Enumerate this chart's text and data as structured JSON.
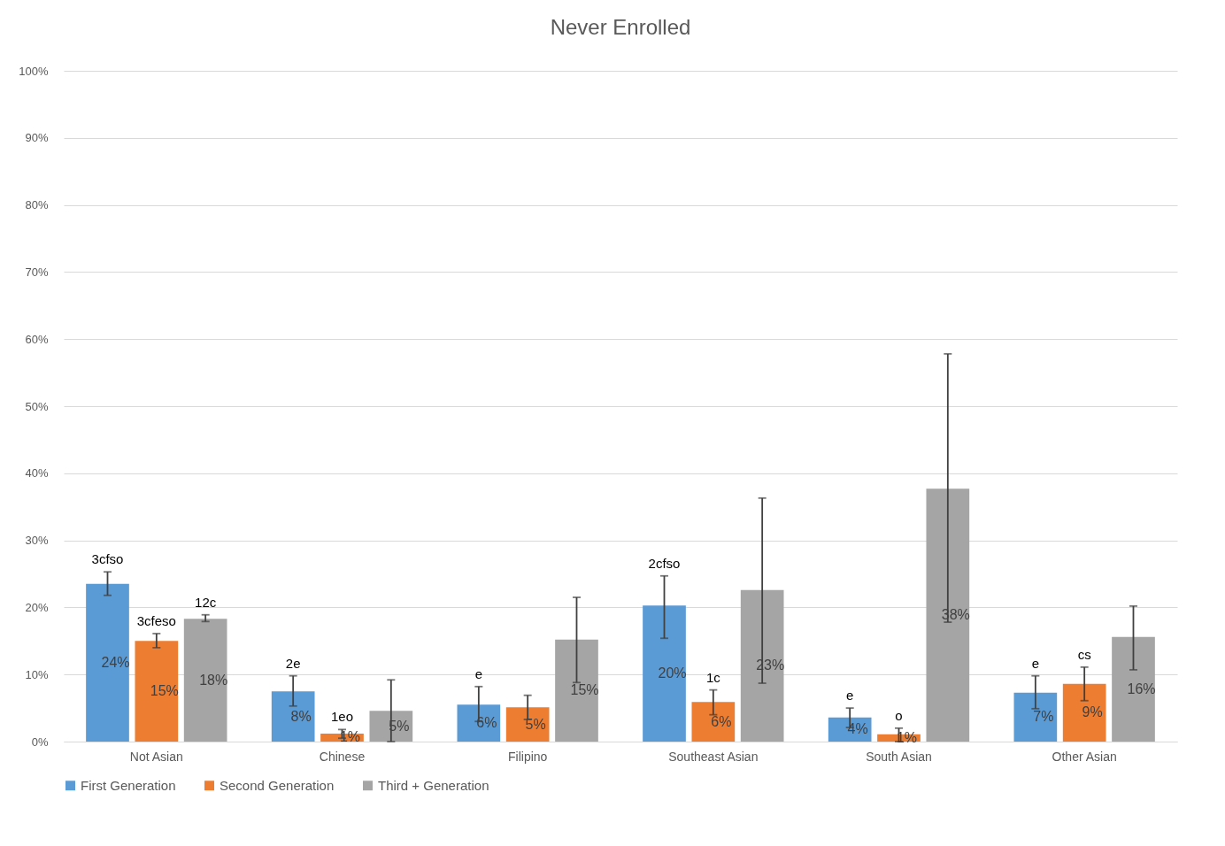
{
  "chart_data": {
    "type": "bar",
    "title": "Never Enrolled",
    "categories": [
      "Not Asian",
      "Chinese",
      "Filipino",
      "Southeast Asian",
      "South Asian",
      "Other Asian"
    ],
    "series": [
      {
        "name": "First Generation",
        "color": "#5b9bd5",
        "values": [
          23.5,
          7.5,
          5.5,
          20.3,
          3.6,
          7.3
        ],
        "errors": [
          [
            21.8,
            25.3
          ],
          [
            5.3,
            9.8
          ],
          [
            3.0,
            8.2
          ],
          [
            15.4,
            24.7
          ],
          [
            2.1,
            5.0
          ],
          [
            4.9,
            9.8
          ]
        ],
        "value_labels": [
          "24%",
          "8%",
          "6%",
          "20%",
          "4%",
          "7%"
        ]
      },
      {
        "name": "Second Generation",
        "color": "#ed7d31",
        "values": [
          15.0,
          1.2,
          5.1,
          5.9,
          1.1,
          8.6
        ],
        "errors": [
          [
            14.0,
            16.1
          ],
          [
            0.5,
            1.8
          ],
          [
            3.3,
            6.9
          ],
          [
            4.0,
            7.7
          ],
          [
            0,
            2.0
          ],
          [
            6.1,
            11.1
          ]
        ],
        "value_labels": [
          "15%",
          "1%",
          "5%",
          "6%",
          "1%",
          "9%"
        ]
      },
      {
        "name": "Third + Generation",
        "color": "#a5a5a5",
        "values": [
          18.3,
          4.6,
          15.2,
          22.6,
          37.7,
          15.6
        ],
        "errors": [
          [
            17.9,
            18.9
          ],
          [
            0,
            9.2
          ],
          [
            8.8,
            21.5
          ],
          [
            8.7,
            36.3
          ],
          [
            17.8,
            57.8
          ],
          [
            10.7,
            20.2
          ]
        ],
        "value_labels": [
          "18%",
          "5%",
          "15%",
          "23%",
          "38%",
          "16%"
        ]
      }
    ],
    "annotations": [
      "3cfso",
      "3cfeso",
      "12c",
      "2e",
      "1eo",
      "e",
      "2cfso",
      "1c",
      "e",
      "o",
      "e",
      "cs"
    ],
    "ylim": [
      0,
      100
    ],
    "yticks": [
      {
        "value": 0,
        "label": "0%"
      },
      {
        "value": 10,
        "label": "10%"
      },
      {
        "value": 20,
        "label": "20%"
      },
      {
        "value": 30,
        "label": "30%"
      },
      {
        "value": 40,
        "label": "40%"
      },
      {
        "value": 50,
        "label": "50%"
      },
      {
        "value": 60,
        "label": "60%"
      },
      {
        "value": 70,
        "label": "70%"
      },
      {
        "value": 80,
        "label": "80%"
      },
      {
        "value": 90,
        "label": "90%"
      },
      {
        "value": 100,
        "label": "100%"
      }
    ],
    "grid": "y",
    "legend": "bottom"
  }
}
